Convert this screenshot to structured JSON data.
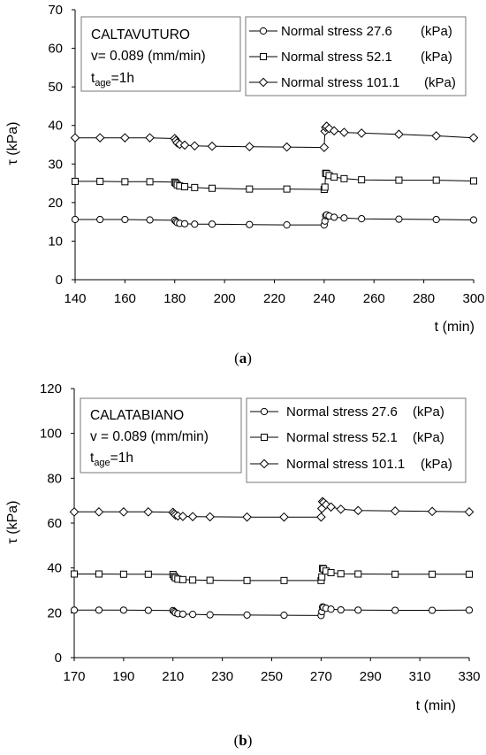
{
  "chart_data": [
    {
      "type": "line",
      "caption": "(a)",
      "xlabel": "t (min)",
      "ylabel": "τ (kPa)",
      "xlim": [
        140,
        300
      ],
      "ylim": [
        0,
        70
      ],
      "xticks": [
        "140",
        "160",
        "180",
        "200",
        "220",
        "240",
        "260",
        "280",
        "300"
      ],
      "yticks": [
        "0",
        "10",
        "20",
        "30",
        "40",
        "50",
        "60",
        "70"
      ],
      "grid": false,
      "legend_position": "top-right",
      "info": {
        "site": "CALTAVUTURO",
        "velocity": "v= 0.089 (mm/min)",
        "tage_main": "t",
        "tage_sub": "age",
        "tage_rest": "=1h"
      },
      "series": [
        {
          "name": "Normal stress 27.6",
          "unit": "(kPa)",
          "marker": "circle",
          "x": [
            140,
            150,
            160,
            170,
            180,
            180.5,
            181,
            182,
            184,
            188,
            195,
            210,
            225,
            240,
            240.3,
            240.6,
            241,
            242,
            244,
            248,
            255,
            270,
            285,
            300
          ],
          "y": [
            15.6,
            15.6,
            15.6,
            15.5,
            15.4,
            15.1,
            14.8,
            14.6,
            14.5,
            14.4,
            14.4,
            14.3,
            14.2,
            14.2,
            15.2,
            16.6,
            16.8,
            16.5,
            16.2,
            16.0,
            15.8,
            15.7,
            15.6,
            15.5
          ]
        },
        {
          "name": "Normal stress 52.1",
          "unit": "(kPa)",
          "marker": "square",
          "x": [
            140,
            150,
            160,
            170,
            180,
            180.5,
            181,
            182,
            184,
            188,
            195,
            210,
            225,
            240,
            240.3,
            240.6,
            241,
            242,
            244,
            248,
            255,
            270,
            285,
            300
          ],
          "y": [
            25.5,
            25.5,
            25.4,
            25.4,
            25.3,
            25.0,
            24.6,
            24.3,
            24.1,
            23.9,
            23.7,
            23.5,
            23.5,
            23.4,
            24.0,
            27.6,
            27.5,
            27.0,
            26.6,
            26.2,
            25.9,
            25.8,
            25.8,
            25.6
          ]
        },
        {
          "name": "Normal stress 101.1",
          "unit": "(kPa)",
          "marker": "diamond",
          "x": [
            140,
            150,
            160,
            170,
            180,
            180.5,
            181,
            182,
            184,
            188,
            195,
            210,
            225,
            240,
            240.3,
            240.6,
            241,
            242,
            244,
            248,
            255,
            270,
            285,
            300
          ],
          "y": [
            36.8,
            36.8,
            36.8,
            36.8,
            36.6,
            36.1,
            35.5,
            35.1,
            34.9,
            34.7,
            34.6,
            34.5,
            34.4,
            34.3,
            38.5,
            39.5,
            39.8,
            39.2,
            38.6,
            38.2,
            38.0,
            37.7,
            37.3,
            36.8
          ]
        }
      ]
    },
    {
      "type": "line",
      "caption": "(b)",
      "xlabel": "t (min)",
      "ylabel": "τ (kPa)",
      "xlim": [
        170,
        330
      ],
      "ylim": [
        0,
        120
      ],
      "xticks": [
        "170",
        "190",
        "210",
        "230",
        "250",
        "270",
        "290",
        "310",
        "330"
      ],
      "yticks": [
        "0",
        "20",
        "40",
        "60",
        "80",
        "100",
        "120"
      ],
      "grid": false,
      "legend_position": "top-right",
      "info": {
        "site": "CALATABIANO",
        "velocity": "v = 0.089 (mm/min)",
        "tage_main": "t",
        "tage_sub": "age",
        "tage_rest": "=1h"
      },
      "series": [
        {
          "name": "Normal stress 27.6",
          "unit": "(kPa)",
          "marker": "circle",
          "x": [
            170,
            180,
            190,
            200,
            210,
            210.5,
            211,
            212,
            214,
            218,
            225,
            240,
            255,
            270,
            270.3,
            270.6,
            271,
            272,
            274,
            278,
            285,
            300,
            315,
            330
          ],
          "y": [
            21.2,
            21.2,
            21.2,
            21.1,
            21.0,
            20.5,
            20.0,
            19.6,
            19.4,
            19.3,
            19.1,
            19.0,
            18.9,
            18.8,
            20.5,
            22.6,
            22.4,
            22.0,
            21.6,
            21.3,
            21.2,
            21.1,
            21.1,
            21.2
          ]
        },
        {
          "name": "Normal stress 52.1",
          "unit": "(kPa)",
          "marker": "square",
          "x": [
            170,
            180,
            190,
            200,
            210,
            210.5,
            211,
            212,
            214,
            218,
            225,
            240,
            255,
            270,
            270.3,
            270.6,
            271,
            272,
            274,
            278,
            285,
            300,
            315,
            330
          ],
          "y": [
            37.3,
            37.3,
            37.2,
            37.2,
            37.1,
            36.2,
            35.6,
            35.0,
            34.8,
            34.6,
            34.5,
            34.4,
            34.4,
            34.4,
            36.0,
            39.8,
            39.6,
            38.6,
            37.9,
            37.4,
            37.3,
            37.2,
            37.2,
            37.2
          ]
        },
        {
          "name": "Normal stress 101.1",
          "unit": "(kPa)",
          "marker": "diamond",
          "x": [
            170,
            180,
            190,
            200,
            210,
            210.5,
            211,
            212,
            214,
            218,
            225,
            240,
            255,
            270,
            270.3,
            270.6,
            271,
            272,
            274,
            278,
            285,
            300,
            315,
            330
          ],
          "y": [
            65.0,
            65.0,
            65.0,
            65.0,
            64.8,
            64.2,
            63.6,
            63.2,
            63.0,
            62.9,
            62.8,
            62.7,
            62.7,
            62.7,
            66.5,
            69.6,
            69.2,
            68.2,
            67.2,
            66.2,
            65.6,
            65.4,
            65.2,
            65.0
          ]
        }
      ]
    }
  ]
}
